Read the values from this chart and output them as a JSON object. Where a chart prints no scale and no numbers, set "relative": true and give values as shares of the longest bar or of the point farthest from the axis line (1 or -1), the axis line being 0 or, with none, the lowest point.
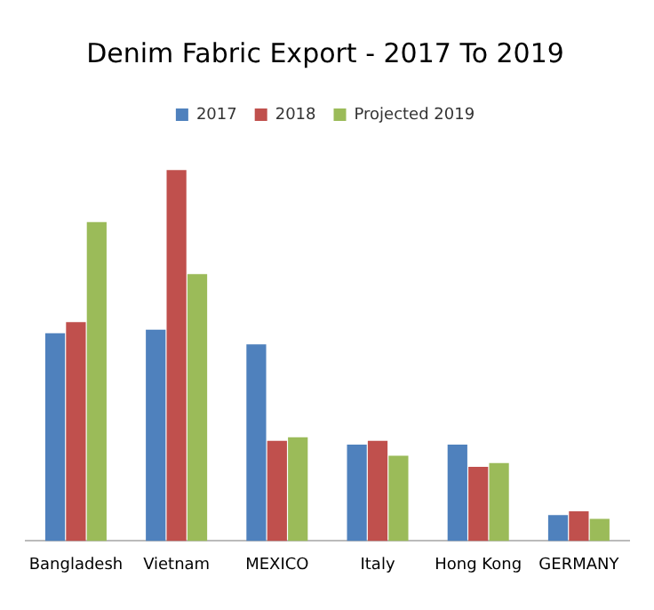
{
  "chart_data": {
    "type": "bar",
    "title": "Denim Fabric Export - 2017 To 2019",
    "relative": true,
    "legend": "top",
    "grid": false,
    "categories": [
      "Bangladesh",
      "Vietnam",
      "MEXICO",
      "Italy",
      "Hong Kong",
      "GERMANY"
    ],
    "series": [
      {
        "name": "2017",
        "color": "#4f81bd",
        "values": [
          0.56,
          0.57,
          0.53,
          0.26,
          0.26,
          0.07
        ]
      },
      {
        "name": "2018",
        "color": "#c0504d",
        "values": [
          0.59,
          1,
          0.27,
          0.27,
          0.2,
          0.08
        ]
      },
      {
        "name": "Projected 2019",
        "color": "#9bbb59",
        "values": [
          0.86,
          0.72,
          0.28,
          0.23,
          0.21,
          0.06
        ]
      }
    ]
  }
}
